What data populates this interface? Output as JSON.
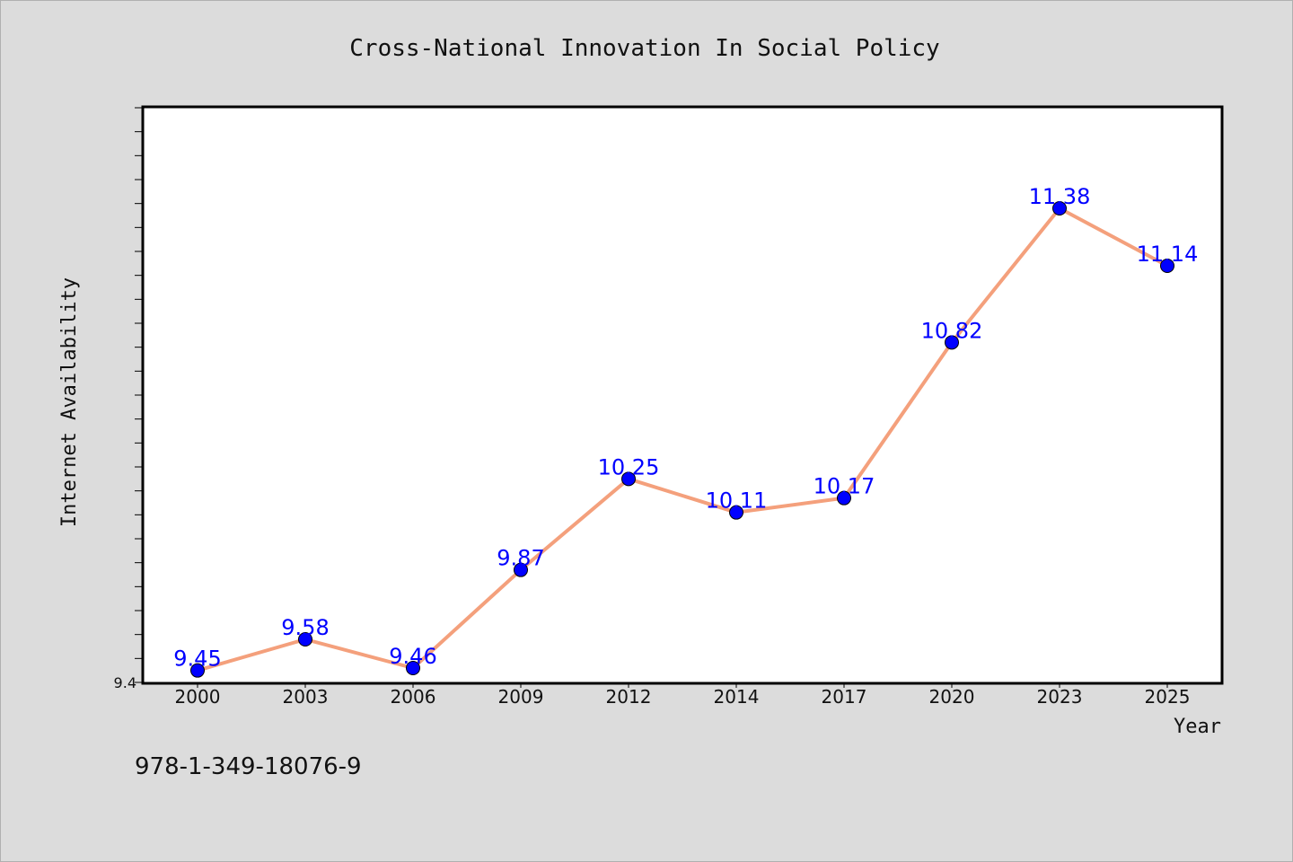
{
  "footer_text": "978-1-349-18076-9",
  "chart_data": {
    "type": "line",
    "title": "Cross-National Innovation In Social Policy",
    "xlabel": "Year",
    "ylabel": "Internet Availability",
    "categories": [
      "2000",
      "2003",
      "2006",
      "2009",
      "2012",
      "2014",
      "2017",
      "2020",
      "2023",
      "2025"
    ],
    "series": [
      {
        "values": [
          9.45,
          9.58,
          9.46,
          9.87,
          10.25,
          10.11,
          10.17,
          10.82,
          11.38,
          11.14
        ],
        "line_color": "#f4a07c",
        "marker_color": "#0000ff"
      }
    ],
    "ylim": [
      9.4,
      11.8
    ],
    "yticks_labeled": [
      "9.4"
    ],
    "data_labels": true,
    "grid": false,
    "legend": "none"
  }
}
